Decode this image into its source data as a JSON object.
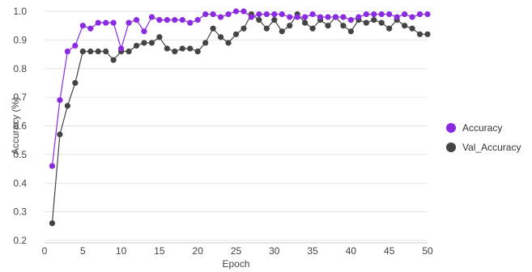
{
  "chart_data": {
    "type": "line",
    "xlabel": "Epoch",
    "ylabel": "Accuracy (%)",
    "xlim": [
      0,
      50
    ],
    "ylim": [
      0.2,
      1.0
    ],
    "xticks": [
      0,
      5,
      10,
      15,
      20,
      25,
      30,
      35,
      40,
      45,
      50
    ],
    "yticks": [
      0.2,
      0.3,
      0.4,
      0.5,
      0.6,
      0.7,
      0.8,
      0.9,
      1.0
    ],
    "grid": "horizontal",
    "legend_position": "right",
    "x": [
      1,
      2,
      3,
      4,
      5,
      6,
      7,
      8,
      9,
      10,
      11,
      12,
      13,
      14,
      15,
      16,
      17,
      18,
      19,
      20,
      21,
      22,
      23,
      24,
      25,
      26,
      27,
      28,
      29,
      30,
      31,
      32,
      33,
      34,
      35,
      36,
      37,
      38,
      39,
      40,
      41,
      42,
      43,
      44,
      45,
      46,
      47,
      48,
      49,
      50
    ],
    "series": [
      {
        "name": "Accuracy",
        "color": "#8a2be2",
        "values": [
          0.46,
          0.69,
          0.86,
          0.88,
          0.95,
          0.94,
          0.96,
          0.96,
          0.96,
          0.87,
          0.96,
          0.97,
          0.93,
          0.98,
          0.97,
          0.97,
          0.97,
          0.97,
          0.96,
          0.97,
          0.99,
          0.99,
          0.98,
          0.99,
          1.0,
          1.0,
          0.98,
          0.99,
          0.99,
          0.99,
          0.99,
          0.98,
          0.98,
          0.98,
          0.99,
          0.98,
          0.98,
          0.98,
          0.98,
          0.97,
          0.98,
          0.99,
          0.99,
          0.99,
          0.99,
          0.98,
          0.99,
          0.98,
          0.99,
          0.99
        ]
      },
      {
        "name": "Val_Accuracy",
        "color": "#444444",
        "values": [
          0.26,
          0.57,
          0.67,
          0.75,
          0.86,
          0.86,
          0.86,
          0.86,
          0.83,
          0.86,
          0.86,
          0.88,
          0.89,
          0.89,
          0.91,
          0.87,
          0.86,
          0.87,
          0.87,
          0.86,
          0.89,
          0.94,
          0.91,
          0.89,
          0.92,
          0.94,
          0.99,
          0.97,
          0.94,
          0.97,
          0.93,
          0.95,
          0.99,
          0.96,
          0.94,
          0.97,
          0.95,
          0.98,
          0.95,
          0.93,
          0.97,
          0.96,
          0.97,
          0.96,
          0.94,
          0.97,
          0.95,
          0.94,
          0.92,
          0.92
        ]
      }
    ]
  }
}
